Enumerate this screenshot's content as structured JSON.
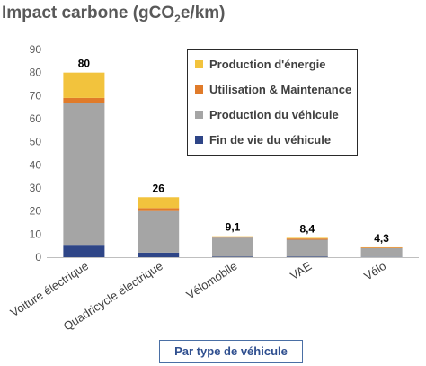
{
  "title_main": "Impact carbone (gCO",
  "title_sub": "2",
  "title_tail": "e/km)",
  "colors": {
    "production_energie": "#F2C33D",
    "utilisation_maintenance": "#E07B2A",
    "production_vehicule": "#A5A5A5",
    "fin_de_vie": "#2E4587"
  },
  "chart_data": {
    "type": "bar",
    "stacked": true,
    "title": "Impact carbone (gCO2e/km)",
    "xlabel": "Par type de véhicule",
    "ylabel": "",
    "ylim": [
      0,
      90
    ],
    "yticks": [
      "0",
      "10",
      "20",
      "30",
      "40",
      "50",
      "60",
      "70",
      "80",
      "90"
    ],
    "grid": false,
    "legend_position": "top-right",
    "categories": [
      "Voiture électrique",
      "Quadricycle électrique",
      "Vélomobile",
      "VAE",
      "Vélo"
    ],
    "totals": [
      "80",
      "26",
      "9,1",
      "8,4",
      "4,3"
    ],
    "series": [
      {
        "name": "Fin de vie du véhicule",
        "color_key": "fin_de_vie",
        "values": [
          5,
          2,
          0.2,
          0.2,
          0.1
        ]
      },
      {
        "name": "Production du véhicule",
        "color_key": "production_vehicule",
        "values": [
          62,
          18,
          8.3,
          7.4,
          3.8
        ]
      },
      {
        "name": "Utilisation & Maintenance",
        "color_key": "utilisation_maintenance",
        "values": [
          2,
          1.3,
          0.5,
          0.5,
          0.3
        ]
      },
      {
        "name": "Production d'énergie",
        "color_key": "production_energie",
        "values": [
          11,
          4.7,
          0.1,
          0.3,
          0.1
        ]
      }
    ],
    "legend_order": [
      "Production d'énergie",
      "Utilisation & Maintenance",
      "Production du véhicule",
      "Fin de vie du véhicule"
    ]
  }
}
